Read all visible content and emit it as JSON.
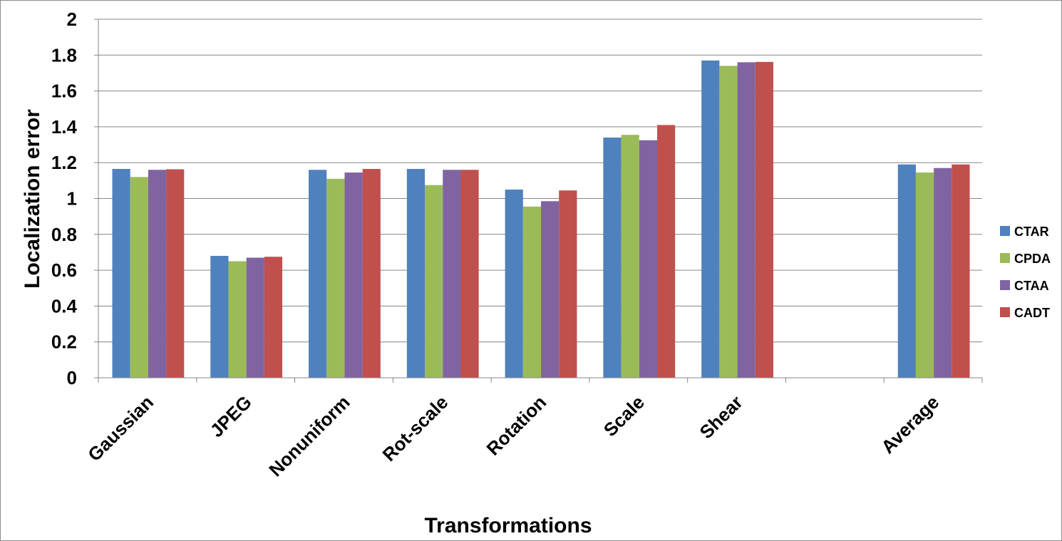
{
  "chart_data": {
    "type": "bar",
    "title": "",
    "xlabel": "Transformations",
    "ylabel": "Localization error",
    "ylim": [
      0,
      2
    ],
    "yticks": [
      0,
      0.2,
      0.4,
      0.6,
      0.8,
      1,
      1.2,
      1.4,
      1.6,
      1.8,
      2
    ],
    "ytick_labels": [
      "0",
      "0.2",
      "0.4",
      "0.6",
      "0.8",
      "1",
      "1.2",
      "1.4",
      "1.6",
      "1.8",
      "2"
    ],
    "grid": true,
    "legend_position": "right",
    "categories": [
      "Gaussian",
      "JPEG",
      "Nonuniform",
      "Rot-scale",
      "Rotation",
      "Scale",
      "Shear",
      "",
      "Average"
    ],
    "series": [
      {
        "name": "CTAR",
        "color": "#4F81BD",
        "values": [
          1.165,
          0.68,
          1.16,
          1.165,
          1.05,
          1.34,
          1.77,
          null,
          1.19
        ]
      },
      {
        "name": "CPDA",
        "color": "#9BBB59",
        "values": [
          1.12,
          0.65,
          1.11,
          1.075,
          0.955,
          1.355,
          1.74,
          null,
          1.145
        ]
      },
      {
        "name": "CTAA",
        "color": "#8064A2",
        "values": [
          1.16,
          0.67,
          1.145,
          1.16,
          0.985,
          1.325,
          1.76,
          null,
          1.17
        ]
      },
      {
        "name": "CADT",
        "color": "#C0504D",
        "values": [
          1.163,
          0.675,
          1.165,
          1.16,
          1.045,
          1.41,
          1.762,
          null,
          1.19
        ]
      }
    ],
    "gridline_color": "#868686",
    "axis_color": "#868686"
  }
}
